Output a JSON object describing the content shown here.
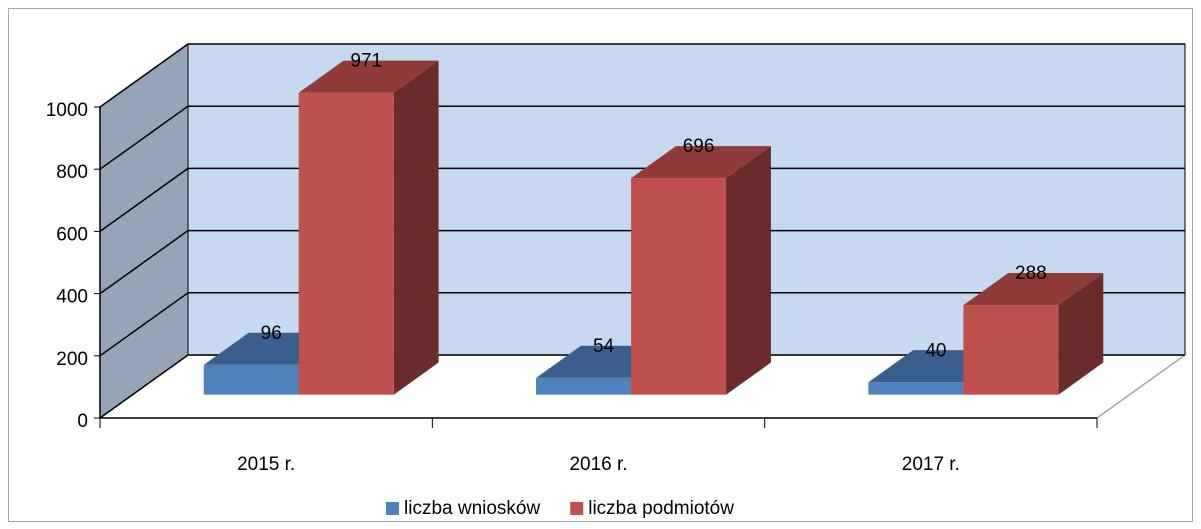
{
  "chart_data": {
    "type": "bar3d",
    "categories": [
      "2015 r.",
      "2016 r.",
      "2017 r."
    ],
    "series": [
      {
        "name": "liczba wniosków",
        "color": "#4f81bd",
        "values": [
          96,
          54,
          40
        ]
      },
      {
        "name": "liczba podmiotów",
        "color": "#c0504d",
        "values": [
          971,
          696,
          288
        ]
      }
    ],
    "ylim": [
      0,
      1000
    ],
    "yticks": [
      0,
      200,
      400,
      600,
      800,
      1000
    ],
    "grid": true,
    "legend": "bottom"
  }
}
